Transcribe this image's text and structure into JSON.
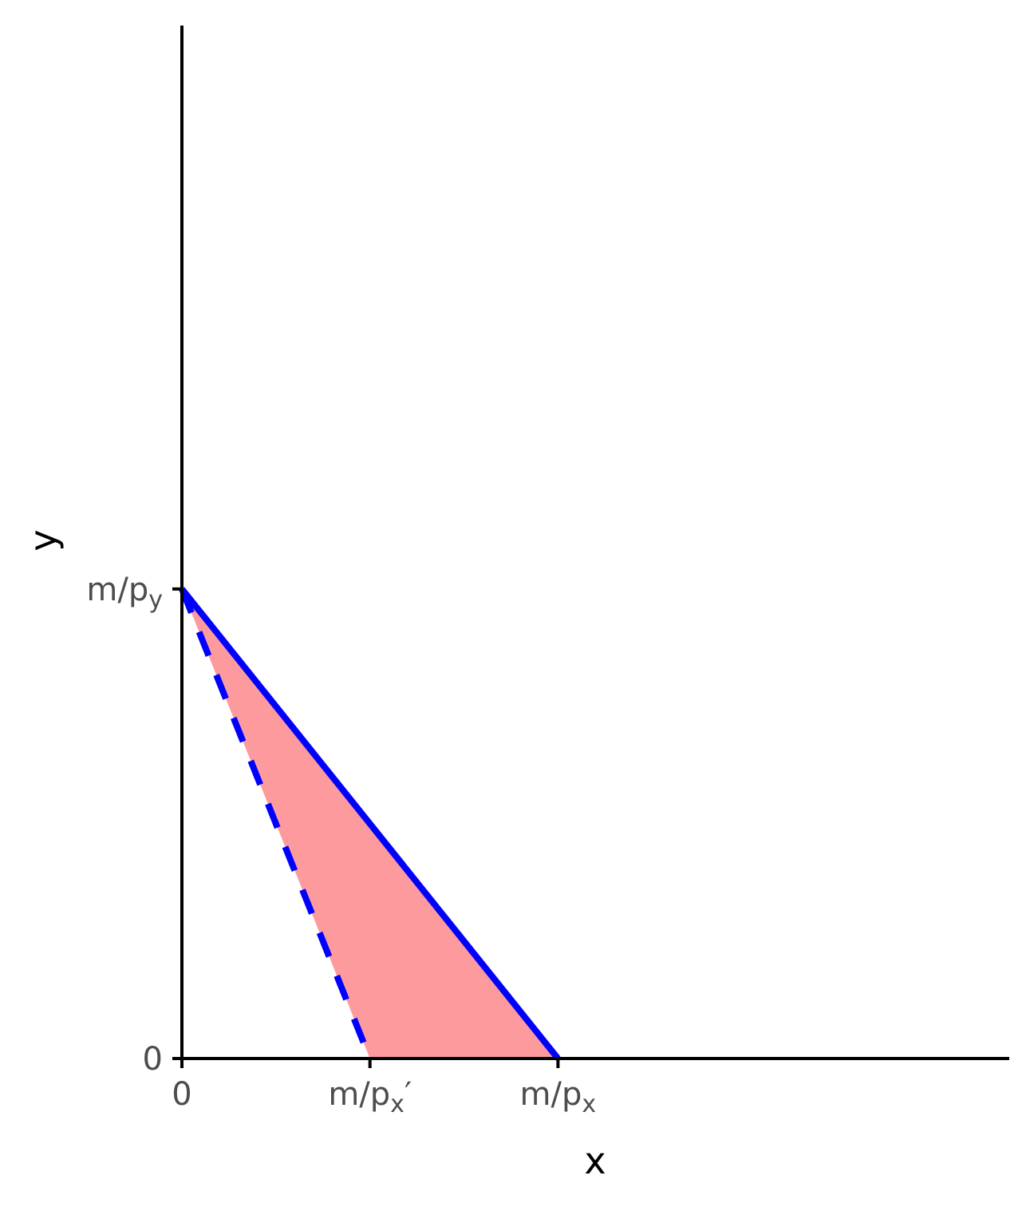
{
  "chart_data": {
    "type": "line",
    "x_label": "x",
    "y_label": "y",
    "xlim": [
      0,
      22
    ],
    "ylim": [
      0,
      22
    ],
    "xticks": [
      {
        "value": 0,
        "label": "0"
      },
      {
        "value": 5,
        "label": "m/px′"
      },
      {
        "value": 10,
        "label": "m/px"
      }
    ],
    "yticks": [
      {
        "value": 0,
        "label": "0"
      },
      {
        "value": 10,
        "label": "m/py"
      }
    ],
    "area": {
      "x": [
        0,
        10,
        5
      ],
      "y": [
        10,
        0,
        0
      ],
      "color": "#fc9a9e"
    },
    "lines": [
      {
        "x": [
          0,
          10
        ],
        "y": [
          10,
          0
        ],
        "color": "#0000ff",
        "style": "solid"
      },
      {
        "x": [
          0,
          5
        ],
        "y": [
          10,
          0
        ],
        "color": "#0000ff",
        "style": "dashed"
      }
    ]
  }
}
